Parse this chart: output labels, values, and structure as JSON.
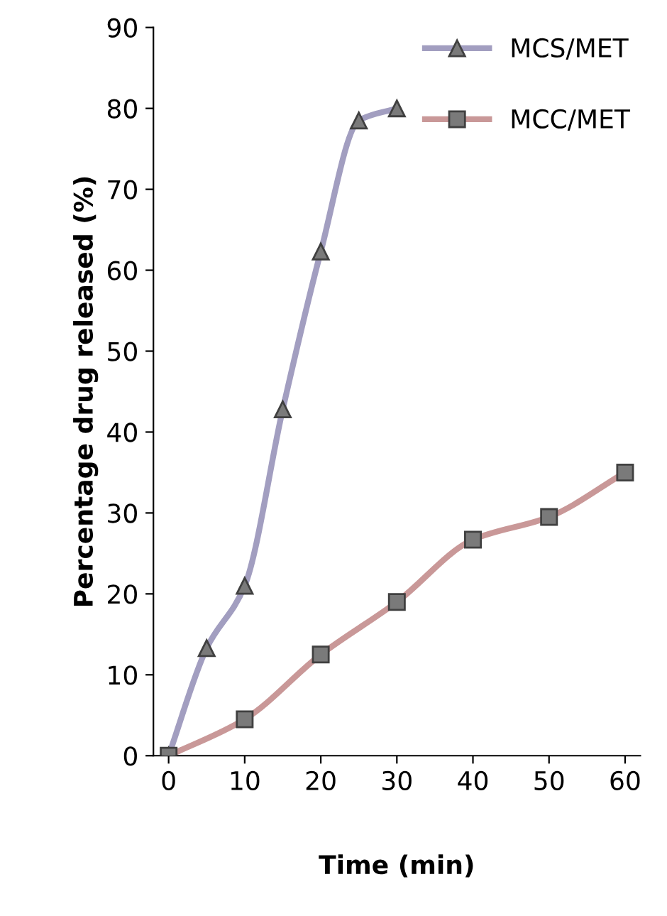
{
  "chart_data": {
    "type": "line",
    "xlabel": "Time (min)",
    "ylabel": "Percentage drug released (%)",
    "xlim": [
      -2,
      62
    ],
    "ylim": [
      0,
      90
    ],
    "xticks": [
      0,
      10,
      20,
      30,
      40,
      50,
      60
    ],
    "yticks": [
      0,
      10,
      20,
      30,
      40,
      50,
      60,
      70,
      80,
      90
    ],
    "grid": false,
    "legend": "top right",
    "series": [
      {
        "name": "MCS/MET",
        "color": "#a29ec0",
        "marker": "triangle",
        "x": [
          0,
          5,
          10,
          15,
          20,
          25,
          30
        ],
        "values": [
          0,
          13.3,
          21,
          42.8,
          62.3,
          78.5,
          80
        ]
      },
      {
        "name": "MCC/MET",
        "color": "#c99898",
        "marker": "square",
        "x": [
          0,
          10,
          20,
          30,
          40,
          50,
          60
        ],
        "values": [
          0,
          4.5,
          12.5,
          19,
          26.7,
          29.5,
          35
        ]
      }
    ]
  }
}
